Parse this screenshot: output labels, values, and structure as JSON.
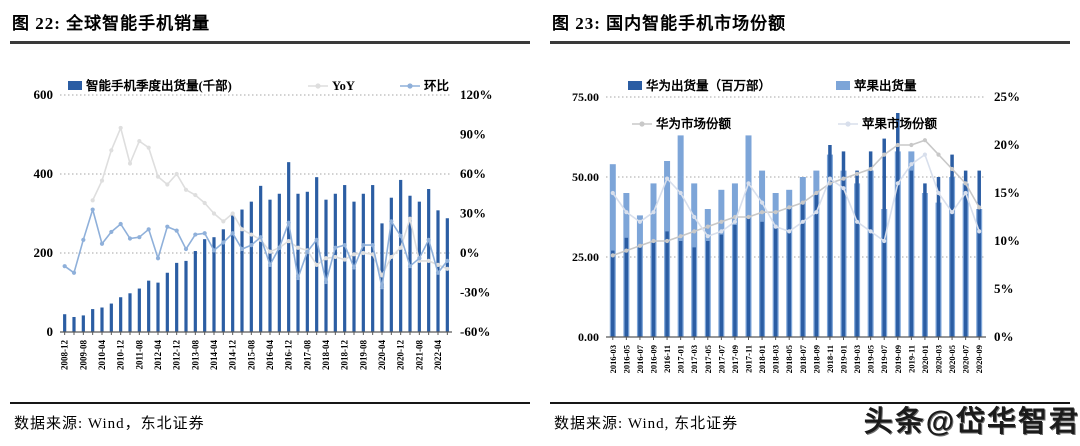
{
  "chart_data": [
    {
      "type": "bar+line combo",
      "title": "图 22: 全球智能手机销量",
      "source": "数据来源: Wind，东北证券",
      "label_every": 2,
      "grid": "dotted horizontal",
      "legend_position": "top",
      "left_axis": {
        "ticks": [
          "600",
          "400",
          "200",
          "0"
        ],
        "min": 0,
        "max": 600
      },
      "right_axis": {
        "ticks": [
          "120%",
          "90%",
          "60%",
          "30%",
          "0%",
          "-30%",
          "-60%"
        ],
        "min": -60,
        "max": 120
      },
      "categories": [
        "2008-12",
        "2009-04",
        "2009-08",
        "2009-12",
        "2010-04",
        "2010-08",
        "2010-12",
        "2011-04",
        "2011-08",
        "2011-12",
        "2012-04",
        "2012-08",
        "2012-12",
        "2013-04",
        "2013-08",
        "2013-12",
        "2014-04",
        "2014-08",
        "2014-12",
        "2015-04",
        "2015-08",
        "2015-12",
        "2016-04",
        "2016-08",
        "2016-12",
        "2017-04",
        "2017-08",
        "2017-12",
        "2018-04",
        "2018-08",
        "2018-12",
        "2019-04",
        "2019-08",
        "2019-12",
        "2020-04",
        "2020-08",
        "2020-12",
        "2021-04",
        "2021-08",
        "2021-12",
        "2022-04",
        "2022-08"
      ],
      "series": [
        {
          "name": "智能手机季度出货量(千部)",
          "kind": "bar",
          "axis": "left",
          "color": "#2B5DA3",
          "values": [
            45,
            38,
            42,
            58,
            62,
            72,
            88,
            98,
            110,
            130,
            125,
            150,
            175,
            180,
            205,
            235,
            240,
            260,
            300,
            310,
            330,
            370,
            335,
            350,
            430,
            350,
            355,
            392,
            335,
            350,
            372,
            330,
            350,
            372,
            275,
            340,
            385,
            345,
            330,
            362,
            308,
            288
          ]
        },
        {
          "name": "YoY",
          "kind": "line",
          "axis": "right",
          "color": "#DEDEDE",
          "values": [
            null,
            null,
            null,
            40,
            55,
            78,
            95,
            68,
            85,
            80,
            58,
            52,
            60,
            48,
            44,
            38,
            30,
            24,
            30,
            18,
            14,
            10,
            1,
            4,
            9,
            4,
            2,
            -9,
            -4,
            -3,
            -5,
            -1,
            0,
            -1,
            -17,
            -3,
            4,
            26,
            -6,
            -6,
            -9,
            -12
          ]
        },
        {
          "name": "环比",
          "kind": "line",
          "axis": "right",
          "color": "#8FB0DA",
          "values": [
            -10,
            -15,
            10,
            33,
            7,
            16,
            22,
            11,
            12,
            18,
            -4,
            20,
            17,
            3,
            14,
            15,
            2,
            8,
            15,
            3,
            6,
            12,
            -9,
            4,
            23,
            -19,
            1,
            10,
            -22,
            4,
            6,
            -11,
            6,
            6,
            -26,
            24,
            13,
            -10,
            -4,
            10,
            -15,
            -6
          ]
        }
      ]
    },
    {
      "type": "bar+line combo",
      "title": "图 23: 国内智能手机市场份额",
      "source": "数据来源: Wind, 东北证券",
      "label_every": 1,
      "grid": "dotted horizontal",
      "legend_position": "top (two rows)",
      "left_axis": {
        "ticks": [
          "75.00",
          "50.00",
          "25.00",
          "0.00"
        ],
        "min": 0,
        "max": 75
      },
      "right_axis": {
        "ticks": [
          "25%",
          "20%",
          "15%",
          "10%",
          "5%",
          "0%"
        ],
        "min": 0,
        "max": 25
      },
      "categories": [
        "2016-03",
        "2016-05",
        "2016-07",
        "2016-09",
        "2016-11",
        "2017-01",
        "2017-03",
        "2017-05",
        "2017-07",
        "2017-09",
        "2017-11",
        "2018-01",
        "2018-03",
        "2018-05",
        "2018-07",
        "2018-09",
        "2018-11",
        "2019-01",
        "2019-03",
        "2019-05",
        "2019-07",
        "2019-09",
        "2019-11",
        "2020-01",
        "2020-03",
        "2020-05",
        "2020-07",
        "2020-09"
      ],
      "series": [
        {
          "name": "华为出货量（百万部）",
          "kind": "bar",
          "axis": "left",
          "color": "#2B5DA3",
          "barw": 3.5,
          "values": [
            27,
            31,
            28,
            30,
            33,
            30,
            28,
            30,
            32,
            35,
            38,
            36,
            34,
            40,
            42,
            45,
            60,
            58,
            52,
            58,
            62,
            70,
            52,
            48,
            50,
            57,
            52,
            52
          ]
        },
        {
          "name": "苹果出货量",
          "kind": "bar",
          "axis": "left",
          "color": "#7DA5D8",
          "barw": 6,
          "values": [
            54,
            45,
            38,
            48,
            55,
            63,
            48,
            40,
            46,
            48,
            63,
            52,
            45,
            46,
            50,
            52,
            57,
            52,
            48,
            52,
            40,
            58,
            58,
            45,
            42,
            50,
            48,
            40
          ]
        },
        {
          "name": "华为市场份额",
          "kind": "line",
          "axis": "right",
          "color": "#C8C8C8",
          "values": [
            8.5,
            9,
            9.5,
            10,
            10,
            10.5,
            11,
            11.5,
            12,
            12.5,
            12.5,
            13,
            13,
            13.5,
            14,
            15,
            16,
            16.5,
            17,
            17.5,
            19,
            20,
            20,
            20.5,
            19,
            17.5,
            16,
            13.5
          ]
        },
        {
          "name": "苹果市场份额",
          "kind": "line",
          "axis": "right",
          "color": "#D8DFEC",
          "values": [
            15,
            13,
            12,
            13,
            16.5,
            15,
            12.5,
            10.5,
            11,
            12,
            16,
            14,
            11.5,
            11,
            12,
            13,
            16.5,
            15.5,
            12,
            11,
            10,
            16,
            18,
            19,
            15,
            13,
            15,
            11
          ]
        }
      ]
    }
  ],
  "footer": {
    "watermark": "头条@岱华智君"
  }
}
